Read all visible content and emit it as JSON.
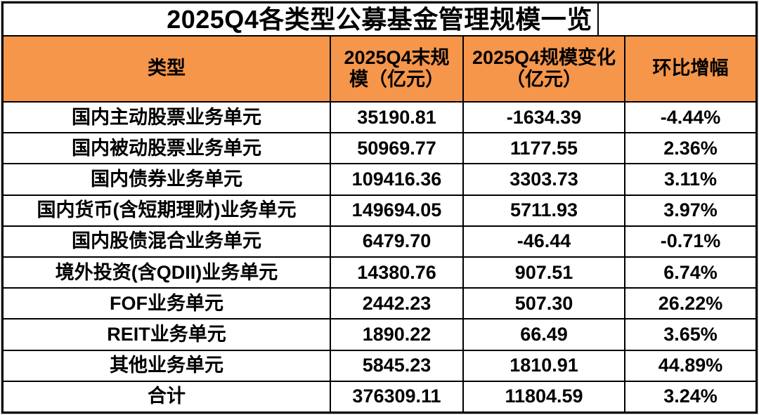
{
  "title": "2025Q4各类型公募基金管理规模一览",
  "colors": {
    "header_bg": "#F6964B",
    "border": "#000000",
    "cell_bg": "#FFFFFF",
    "text": "#000000"
  },
  "table": {
    "columns": [
      {
        "label": "类型"
      },
      {
        "label": "2025Q4末规模（亿元）"
      },
      {
        "label": "2025Q4规模变化（亿元）"
      },
      {
        "label": "环比增幅"
      }
    ],
    "rows": [
      {
        "type": "国内主动股票业务单元",
        "scale": "35190.81",
        "change": "-1634.39",
        "pct": "-4.44%"
      },
      {
        "type": "国内被动股票业务单元",
        "scale": "50969.77",
        "change": "1177.55",
        "pct": "2.36%"
      },
      {
        "type": "国内债券业务单元",
        "scale": "109416.36",
        "change": "3303.73",
        "pct": "3.11%"
      },
      {
        "type": "国内货币(含短期理财)业务单元",
        "scale": "149694.05",
        "change": "5711.93",
        "pct": "3.97%"
      },
      {
        "type": "国内股债混合业务单元",
        "scale": "6479.70",
        "change": "-46.44",
        "pct": "-0.71%"
      },
      {
        "type": "境外投资(含QDII)业务单元",
        "scale": "14380.76",
        "change": "907.51",
        "pct": "6.74%"
      },
      {
        "type": "FOF业务单元",
        "scale": "2442.23",
        "change": "507.30",
        "pct": "26.22%"
      },
      {
        "type": "REIT业务单元",
        "scale": "1890.22",
        "change": "66.49",
        "pct": "3.65%"
      },
      {
        "type": "其他业务单元",
        "scale": "5845.23",
        "change": "1810.91",
        "pct": "44.89%"
      },
      {
        "type": "合计",
        "scale": "376309.11",
        "change": "11804.59",
        "pct": "3.24%"
      }
    ]
  },
  "chart_data": {
    "type": "table",
    "title": "2025Q4各类型公募基金管理规模一览",
    "columns": [
      "类型",
      "2025Q4末规模（亿元）",
      "2025Q4规模变化（亿元）",
      "环比增幅"
    ],
    "categories": [
      "国内主动股票业务单元",
      "国内被动股票业务单元",
      "国内债券业务单元",
      "国内货币(含短期理财)业务单元",
      "国内股债混合业务单元",
      "境外投资(含QDII)业务单元",
      "FOF业务单元",
      "REIT业务单元",
      "其他业务单元",
      "合计"
    ],
    "series": [
      {
        "name": "2025Q4末规模（亿元）",
        "values": [
          35190.81,
          50969.77,
          109416.36,
          149694.05,
          6479.7,
          14380.76,
          2442.23,
          1890.22,
          5845.23,
          376309.11
        ]
      },
      {
        "name": "2025Q4规模变化（亿元）",
        "values": [
          -1634.39,
          1177.55,
          3303.73,
          5711.93,
          -46.44,
          907.51,
          507.3,
          66.49,
          1810.91,
          11804.59
        ]
      },
      {
        "name": "环比增幅(%)",
        "values": [
          -4.44,
          2.36,
          3.11,
          3.97,
          -0.71,
          6.74,
          26.22,
          3.65,
          44.89,
          3.24
        ]
      }
    ]
  }
}
